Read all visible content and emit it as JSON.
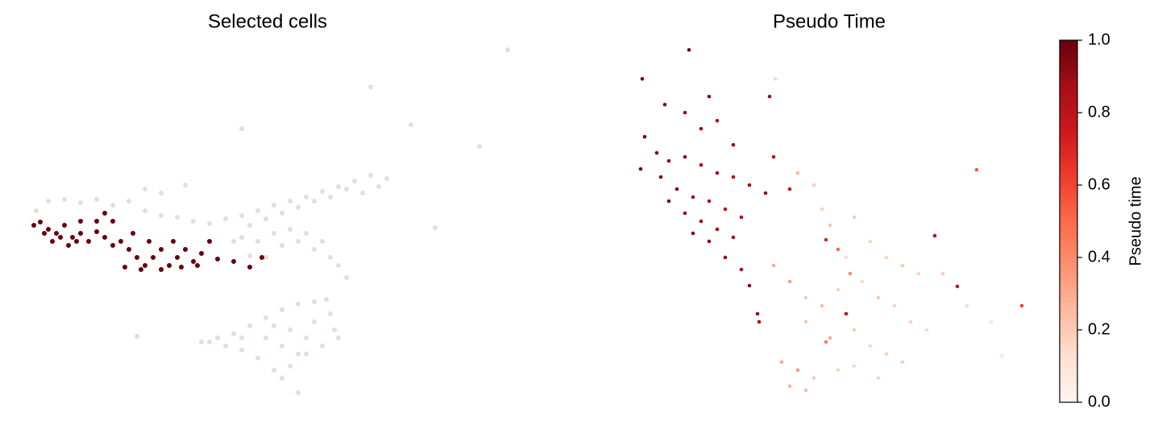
{
  "chart_data": [
    {
      "type": "scatter",
      "title": "Selected cells",
      "xlim": [
        0,
        640
      ],
      "ylim": [
        532,
        0
      ],
      "series": [
        {
          "color": "#e6ddd9",
          "x": [
            45,
            60,
            80,
            100,
            120,
            140,
            160,
            180,
            200,
            220,
            240,
            260,
            280,
            300,
            320,
            340,
            360,
            380,
            400,
            420,
            440,
            460,
            480,
            470,
            450,
            430,
            410,
            390,
            370,
            350,
            330,
            310,
            300,
            320,
            340,
            360,
            380,
            400,
            410,
            430,
            420,
            390,
            370,
            350,
            330,
            310,
            290,
            200,
            230,
            180,
            300,
            460,
            630,
            595,
            510,
            540,
            170,
            250,
            270,
            290,
            310,
            330,
            350,
            370,
            390,
            405,
            410,
            415,
            420,
            400,
            380,
            360,
            350,
            370,
            340,
            320,
            300,
            280,
            260,
            330,
            360,
            380,
            350,
            390,
            300,
            340,
            370
          ],
          "y": [
            262,
            250,
            248,
            252,
            248,
            255,
            250,
            262,
            268,
            270,
            275,
            278,
            272,
            268,
            262,
            255,
            250,
            245,
            238,
            232,
            225,
            218,
            222,
            232,
            240,
            235,
            245,
            250,
            258,
            265,
            272,
            280,
            295,
            300,
            290,
            285,
            290,
            300,
            320,
            345,
            330,
            310,
            300,
            305,
            320,
            318,
            300,
            240,
            230,
            235,
            160,
            108,
            62,
            182,
            155,
            283,
            418,
            425,
            420,
            415,
            405,
            395,
            385,
            378,
            375,
            372,
            390,
            410,
            420,
            430,
            440,
            455,
            470,
            488,
            460,
            445,
            435,
            430,
            425,
            420,
            410,
            420,
            430,
            400,
            420,
            405,
            440
          ]
        },
        {
          "color": "#67000d",
          "x": [
            42,
            50,
            60,
            70,
            80,
            90,
            100,
            110,
            120,
            130,
            140,
            65,
            85,
            100,
            120,
            75,
            95,
            55,
            150,
            160,
            170,
            180,
            190,
            200,
            210,
            220,
            230,
            240,
            250,
            260,
            155,
            175,
            200,
            225,
            245,
            270,
            290,
            310,
            325,
            185,
            215,
            165,
            140,
            130
          ],
          "y": [
            280,
            276,
            285,
            290,
            280,
            295,
            290,
            300,
            288,
            295,
            305,
            300,
            305,
            275,
            275,
            295,
            300,
            290,
            300,
            310,
            320,
            330,
            320,
            310,
            330,
            320,
            310,
            325,
            315,
            300,
            332,
            335,
            335,
            332,
            330,
            322,
            325,
            332,
            320,
            300,
            300,
            290,
            275,
            265
          ]
        }
      ]
    },
    {
      "type": "scatter",
      "title": "Pseudo Time",
      "xlim": [
        760,
        1280
      ],
      "ylim": [
        532,
        0
      ],
      "x": [
        855,
        797,
        825,
        850,
        880,
        870,
        890,
        910,
        800,
        815,
        830,
        850,
        870,
        890,
        910,
        930,
        950,
        820,
        840,
        860,
        880,
        900,
        920,
        830,
        850,
        870,
        890,
        910,
        860,
        880,
        900,
        920,
        930,
        940,
        942,
        795,
        960,
        980,
        1050,
        1160,
        1188,
        955,
        1025,
        1212,
        1268,
        990,
        1010,
        1020,
        1030,
        1060,
        1080,
        1050,
        1100,
        1120,
        1140,
        960,
        980,
        1000,
        1020,
        1040,
        1070,
        1090,
        1110,
        1130,
        1150,
        1000,
        1030,
        1060,
        1080,
        1100,
        1120,
        970,
        990,
        1010,
        1040,
        1060,
        1090,
        980,
        1000,
        1170,
        1200,
        1230,
        1243,
        962,
        1040,
        1025,
        1055
      ],
      "y": [
        62,
        98,
        130,
        140,
        120,
        160,
        150,
        180,
        170,
        190,
        200,
        195,
        205,
        215,
        220,
        230,
        240,
        220,
        235,
        245,
        250,
        260,
        270,
        250,
        265,
        275,
        285,
        295,
        290,
        300,
        320,
        335,
        355,
        390,
        400,
        210,
        195,
        235,
        390,
        293,
        356,
        120,
        298,
        211,
        380,
        215,
        230,
        260,
        280,
        270,
        300,
        320,
        320,
        330,
        340,
        330,
        350,
        370,
        380,
        360,
        350,
        370,
        380,
        400,
        410,
        400,
        420,
        410,
        430,
        440,
        450,
        450,
        460,
        470,
        460,
        455,
        470,
        480,
        485,
        340,
        380,
        400,
        442,
        98,
        310,
        425,
        340
      ],
      "values": [
        0.98,
        0.97,
        0.95,
        0.9,
        0.93,
        0.88,
        0.85,
        0.9,
        0.99,
        0.96,
        0.92,
        0.9,
        0.85,
        0.88,
        0.82,
        0.86,
        0.9,
        0.95,
        0.93,
        0.87,
        0.84,
        0.8,
        0.83,
        0.96,
        0.91,
        0.89,
        0.85,
        0.88,
        0.93,
        0.92,
        0.9,
        0.87,
        0.95,
        0.9,
        0.85,
        0.98,
        0.8,
        0.78,
        0.8,
        0.82,
        0.8,
        0.9,
        0.7,
        0.55,
        0.6,
        0.25,
        0.2,
        0.18,
        0.22,
        0.2,
        0.17,
        0.15,
        0.18,
        0.2,
        0.16,
        0.3,
        0.35,
        0.2,
        0.25,
        0.18,
        0.15,
        0.2,
        0.17,
        0.18,
        0.15,
        0.2,
        0.3,
        0.2,
        0.15,
        0.18,
        0.2,
        0.3,
        0.35,
        0.2,
        0.18,
        0.15,
        0.17,
        0.28,
        0.25,
        0.2,
        0.15,
        0.12,
        0.1,
        0.15,
        0.5,
        0.45,
        0.4
      ],
      "colormap": "Reds",
      "colorbar": {
        "label": "Pseudo time",
        "lim": [
          0,
          1
        ],
        "ticks": [
          {
            "value": 0,
            "label": "0.0"
          },
          {
            "value": 0.2,
            "label": "0.2"
          },
          {
            "value": 0.4,
            "label": "0.4"
          },
          {
            "value": 0.6,
            "label": "0.6"
          },
          {
            "value": 0.8,
            "label": "0.8"
          },
          {
            "value": 1,
            "label": "1.0"
          }
        ]
      }
    }
  ]
}
